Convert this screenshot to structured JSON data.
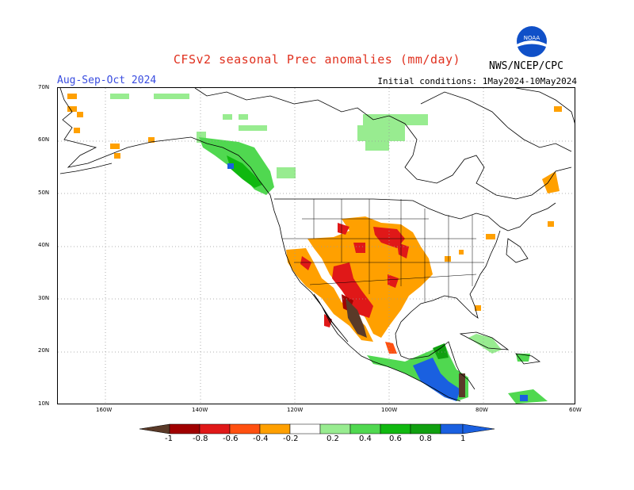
{
  "title": "CFSv2 seasonal Prec anomalies (mm/day)",
  "season": "Aug-Sep-Oct 2024",
  "initial_conditions": "Initial conditions: 1May2024-10May2024",
  "organization": "NWS/NCEP/CPC",
  "logo_text": "NOAA",
  "lat_labels": [
    "70N",
    "60N",
    "50N",
    "40N",
    "30N",
    "20N",
    "10N"
  ],
  "lon_labels": [
    "160W",
    "140W",
    "120W",
    "100W",
    "80W",
    "60W"
  ],
  "colorbar": {
    "labels": [
      "-1",
      "-0.8",
      "-0.6",
      "-0.4",
      "-0.2",
      "0.2",
      "0.4",
      "0.6",
      "0.8",
      "1"
    ],
    "colors": [
      "#5a3a28",
      "#a00000",
      "#e01818",
      "#ff5010",
      "#ffa000",
      "#ffffff",
      "#98ec90",
      "#50d850",
      "#10b810",
      "#10a010",
      "#1a60e0"
    ]
  }
}
